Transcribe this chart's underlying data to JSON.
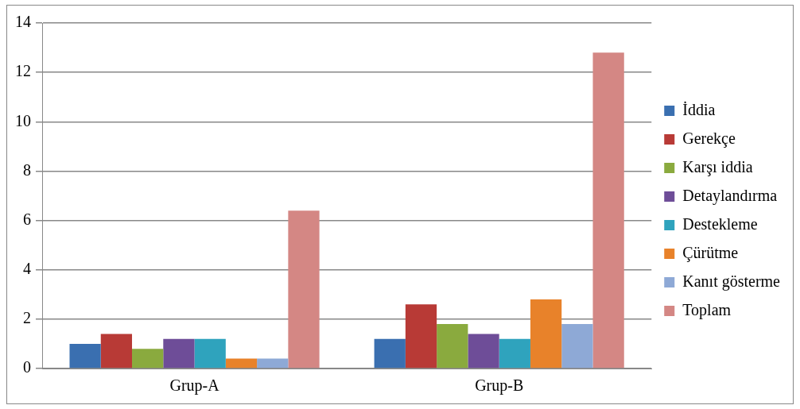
{
  "chart_data": {
    "type": "bar",
    "categories": [
      "Grup-A",
      "Grup-B"
    ],
    "series": [
      {
        "name": "İddia",
        "color": "#3a6fb0",
        "values": [
          1.0,
          1.2
        ]
      },
      {
        "name": "Gerekçe",
        "color": "#b83a36",
        "values": [
          1.4,
          2.6
        ]
      },
      {
        "name": "Karşı iddia",
        "color": "#8aaa3e",
        "values": [
          0.8,
          1.8
        ]
      },
      {
        "name": "Detaylandırma",
        "color": "#6e4d98",
        "values": [
          1.2,
          1.4
        ]
      },
      {
        "name": "Destekleme",
        "color": "#2fa3bd",
        "values": [
          1.2,
          1.2
        ]
      },
      {
        "name": "Çürütme",
        "color": "#e8822a",
        "values": [
          0.4,
          2.8
        ]
      },
      {
        "name": "Kanıt gösterme",
        "color": "#8ea9d6",
        "values": [
          0.4,
          1.8
        ]
      },
      {
        "name": "Toplam",
        "color": "#d48784",
        "values": [
          6.4,
          12.8
        ]
      }
    ],
    "ylim": [
      0,
      14
    ],
    "yticks": [
      0,
      2,
      4,
      6,
      8,
      10,
      12,
      14
    ],
    "grid": "y",
    "legend": "right"
  }
}
